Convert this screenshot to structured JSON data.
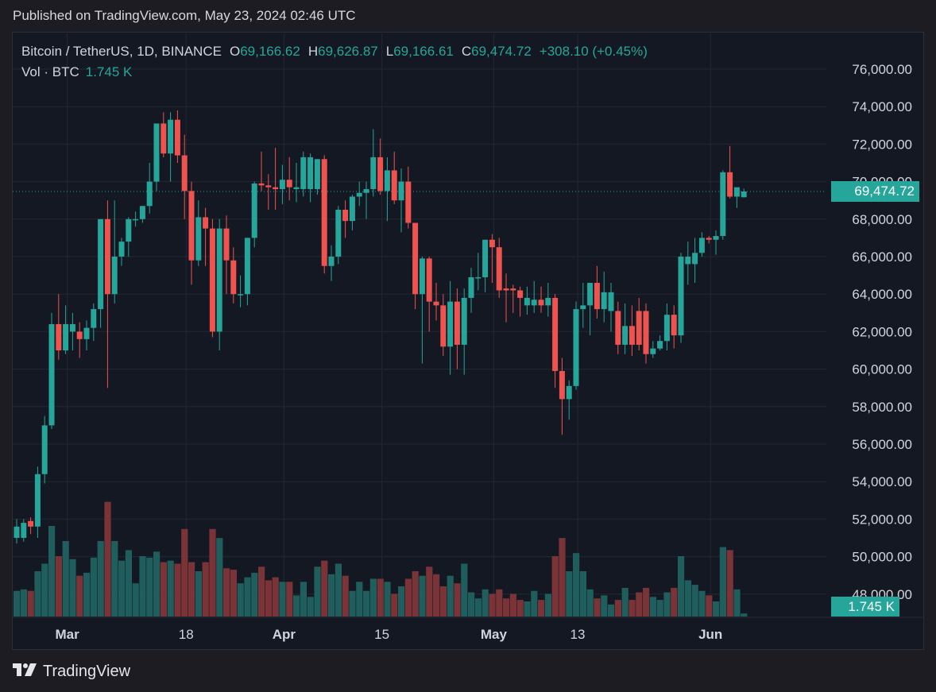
{
  "header": {
    "published": "Published on TradingView.com, May 23, 2024 02:46 UTC"
  },
  "legend": {
    "symbol": "Bitcoin / TetherUS, 1D, BINANCE",
    "o_label": "O",
    "o": "69,166.62",
    "h_label": "H",
    "h": "69,626.87",
    "l_label": "L",
    "l": "69,166.61",
    "c_label": "C",
    "c": "69,474.72",
    "change": "+308.10 (+0.45%)",
    "vol_label": "Vol · BTC",
    "vol_value": "1.745 K"
  },
  "price_tag": "69,474.72",
  "volume_tag": "1.745 K",
  "brand": "TradingView",
  "colors": {
    "up": "#26a69a",
    "down": "#ef5350",
    "up_vol": "#1f5e5c",
    "down_vol": "#7a3438",
    "tag": "#26a69a"
  },
  "chart_data": {
    "type": "candlestick",
    "symbol": "BTC/USDT",
    "interval": "1D",
    "y_range": [
      47000,
      76500
    ],
    "y_ticks": [
      "76,000.00",
      "74,000.00",
      "72,000.00",
      "70,000.00",
      "68,000.00",
      "66,000.00",
      "64,000.00",
      "62,000.00",
      "60,000.00",
      "58,000.00",
      "56,000.00",
      "54,000.00",
      "52,000.00",
      "50,000.00",
      "48,000.00"
    ],
    "y_tick_values": [
      76000,
      74000,
      72000,
      70000,
      68000,
      66000,
      64000,
      62000,
      60000,
      58000,
      56000,
      54000,
      52000,
      50000,
      48000
    ],
    "x_labels": [
      {
        "label": "Mar",
        "index": 7,
        "bold": true
      },
      {
        "label": "18",
        "index": 24,
        "bold": false
      },
      {
        "label": "Apr",
        "index": 38,
        "bold": true
      },
      {
        "label": "15",
        "index": 52,
        "bold": false
      },
      {
        "label": "May",
        "index": 68,
        "bold": true
      },
      {
        "label": "13",
        "index": 80,
        "bold": false
      },
      {
        "label": "Jun",
        "index": 99,
        "bold": true
      }
    ],
    "last_close": 69474.72,
    "candles": [
      [
        51600,
        52000,
        50700,
        51000,
        "up",
        0.17
      ],
      [
        51000,
        52000,
        50800,
        51800,
        "up",
        0.18
      ],
      [
        51900,
        52100,
        51200,
        51600,
        "down",
        0.17
      ],
      [
        51600,
        54800,
        51000,
        54400,
        "up",
        0.3
      ],
      [
        54400,
        57500,
        53900,
        57000,
        "up",
        0.35
      ],
      [
        57000,
        63000,
        56800,
        62400,
        "up",
        0.6
      ],
      [
        62400,
        64000,
        60500,
        61000,
        "down",
        0.4
      ],
      [
        61000,
        63400,
        60800,
        62400,
        "up",
        0.5
      ],
      [
        62400,
        63000,
        61000,
        62000,
        "up",
        0.38
      ],
      [
        62000,
        62500,
        60600,
        61600,
        "down",
        0.27
      ],
      [
        61600,
        62600,
        61000,
        62200,
        "up",
        0.29
      ],
      [
        62200,
        63500,
        61500,
        63200,
        "up",
        0.39
      ],
      [
        63200,
        68000,
        62200,
        68000,
        "up",
        0.5
      ],
      [
        68000,
        69000,
        59000,
        64000,
        "down",
        0.76
      ],
      [
        64000,
        69000,
        63500,
        66000,
        "up",
        0.5
      ],
      [
        66000,
        67000,
        65500,
        66800,
        "up",
        0.37
      ],
      [
        66800,
        68100,
        66000,
        68000,
        "up",
        0.44
      ],
      [
        68000,
        68400,
        67600,
        68000,
        "up",
        0.22
      ],
      [
        68000,
        68700,
        67800,
        68700,
        "up",
        0.4
      ],
      [
        68700,
        71000,
        68300,
        70000,
        "up",
        0.39
      ],
      [
        70000,
        73100,
        69500,
        73100,
        "up",
        0.43
      ],
      [
        73100,
        73700,
        71300,
        71500,
        "down",
        0.36
      ],
      [
        71500,
        73700,
        70000,
        73300,
        "up",
        0.37
      ],
      [
        73300,
        73800,
        71000,
        71400,
        "down",
        0.35
      ],
      [
        71400,
        72500,
        68000,
        69500,
        "down",
        0.58
      ],
      [
        69500,
        70000,
        64500,
        65800,
        "down",
        0.36
      ],
      [
        65800,
        69000,
        65500,
        68100,
        "up",
        0.3
      ],
      [
        68100,
        68600,
        65500,
        67500,
        "down",
        0.36
      ],
      [
        67500,
        68000,
        61700,
        62000,
        "down",
        0.58
      ],
      [
        62000,
        68000,
        61000,
        67500,
        "up",
        0.52
      ],
      [
        67500,
        68200,
        64000,
        65800,
        "down",
        0.32
      ],
      [
        65800,
        66500,
        63500,
        64000,
        "down",
        0.31
      ],
      [
        64000,
        65000,
        63300,
        64000,
        "up",
        0.22
      ],
      [
        64000,
        67000,
        63400,
        67000,
        "up",
        0.26
      ],
      [
        67000,
        70000,
        66500,
        69900,
        "up",
        0.29
      ],
      [
        69900,
        71600,
        69500,
        69800,
        "down",
        0.33
      ],
      [
        69800,
        70400,
        68500,
        69700,
        "down",
        0.24
      ],
      [
        69700,
        71800,
        68500,
        69600,
        "down",
        0.26
      ],
      [
        69600,
        70900,
        68800,
        70100,
        "up",
        0.23
      ],
      [
        70100,
        71300,
        69000,
        69700,
        "down",
        0.23
      ],
      [
        69700,
        71000,
        68900,
        69600,
        "up",
        0.14
      ],
      [
        69600,
        71600,
        69200,
        71300,
        "up",
        0.23
      ],
      [
        71300,
        71500,
        68900,
        69600,
        "up",
        0.13
      ],
      [
        69600,
        71200,
        69300,
        71200,
        "up",
        0.33
      ],
      [
        71200,
        71400,
        65100,
        65500,
        "down",
        0.37
      ],
      [
        65500,
        66600,
        64700,
        66000,
        "up",
        0.28
      ],
      [
        66000,
        68700,
        65600,
        68500,
        "up",
        0.35
      ],
      [
        68500,
        69000,
        67000,
        67900,
        "down",
        0.27
      ],
      [
        67900,
        69300,
        67400,
        69200,
        "up",
        0.17
      ],
      [
        69200,
        70000,
        68700,
        69400,
        "up",
        0.23
      ],
      [
        69400,
        70000,
        68000,
        69600,
        "up",
        0.17
      ],
      [
        69600,
        72800,
        69200,
        71300,
        "up",
        0.25
      ],
      [
        71300,
        72300,
        69300,
        69500,
        "down",
        0.25
      ],
      [
        69500,
        71300,
        67900,
        70600,
        "up",
        0.23
      ],
      [
        70600,
        71600,
        68800,
        69000,
        "down",
        0.15
      ],
      [
        69000,
        70700,
        67300,
        70000,
        "up",
        0.2
      ],
      [
        70000,
        70800,
        67500,
        67800,
        "down",
        0.25
      ],
      [
        67800,
        67600,
        63200,
        64000,
        "down",
        0.3
      ],
      [
        64000,
        66000,
        60300,
        65900,
        "up",
        0.27
      ],
      [
        65900,
        66000,
        62000,
        63600,
        "down",
        0.33
      ],
      [
        63600,
        64600,
        62600,
        63400,
        "down",
        0.28
      ],
      [
        63400,
        64000,
        60700,
        61200,
        "down",
        0.2
      ],
      [
        61200,
        64700,
        59700,
        63600,
        "up",
        0.27
      ],
      [
        63600,
        64300,
        60000,
        61300,
        "down",
        0.22
      ],
      [
        61300,
        64300,
        59700,
        63800,
        "up",
        0.35
      ],
      [
        63800,
        65400,
        63000,
        64900,
        "up",
        0.16
      ],
      [
        64900,
        66200,
        64200,
        64900,
        "up",
        0.12
      ],
      [
        64900,
        66900,
        64100,
        66900,
        "up",
        0.18
      ],
      [
        66900,
        67200,
        64600,
        66500,
        "down",
        0.15
      ],
      [
        66500,
        67000,
        63800,
        64200,
        "down",
        0.18
      ],
      [
        64200,
        65100,
        62500,
        64300,
        "down",
        0.12
      ],
      [
        64300,
        64500,
        63000,
        64200,
        "down",
        0.15
      ],
      [
        64200,
        64400,
        62800,
        63800,
        "down",
        0.11
      ],
      [
        63800,
        64400,
        62900,
        63400,
        "up",
        0.1
      ],
      [
        63400,
        64700,
        63000,
        63700,
        "up",
        0.17
      ],
      [
        63700,
        64400,
        63000,
        63400,
        "down",
        0.11
      ],
      [
        63400,
        64600,
        62800,
        63800,
        "up",
        0.15
      ],
      [
        63800,
        64000,
        59000,
        59900,
        "down",
        0.4
      ],
      [
        59900,
        60600,
        56500,
        58400,
        "down",
        0.52
      ],
      [
        58400,
        59400,
        57300,
        59100,
        "up",
        0.3
      ],
      [
        59100,
        63600,
        58900,
        63200,
        "up",
        0.42
      ],
      [
        63200,
        64600,
        62200,
        63400,
        "up",
        0.3
      ],
      [
        63400,
        64500,
        61800,
        64600,
        "up",
        0.18
      ],
      [
        64600,
        65500,
        62700,
        63200,
        "down",
        0.12
      ],
      [
        63200,
        65200,
        62500,
        64100,
        "up",
        0.14
      ],
      [
        64100,
        64600,
        62000,
        63100,
        "up",
        0.08
      ],
      [
        63100,
        63600,
        60800,
        61300,
        "down",
        0.11
      ],
      [
        61300,
        63500,
        60800,
        62300,
        "up",
        0.19
      ],
      [
        62300,
        63400,
        60700,
        61300,
        "down",
        0.11
      ],
      [
        61300,
        63800,
        61000,
        63100,
        "down",
        0.16
      ],
      [
        63100,
        63500,
        60300,
        60800,
        "down",
        0.19
      ],
      [
        60800,
        61500,
        60600,
        61100,
        "up",
        0.13
      ],
      [
        61100,
        61800,
        61000,
        61500,
        "up",
        0.11
      ],
      [
        61500,
        63500,
        61000,
        62900,
        "up",
        0.16
      ],
      [
        62900,
        63400,
        61100,
        61800,
        "down",
        0.19
      ]
    ],
    "candles_tail": [
      [
        61800,
        66200,
        61400,
        66000,
        "up",
        0.4
      ],
      [
        66000,
        66800,
        64500,
        65600,
        "up",
        0.24
      ],
      [
        65600,
        67000,
        64600,
        66200,
        "up",
        0.21
      ],
      [
        66200,
        67300,
        66000,
        67000,
        "up",
        0.17
      ],
      [
        67000,
        67100,
        66700,
        66900,
        "down",
        0.14
      ],
      [
        66900,
        67400,
        66100,
        67100,
        "up",
        0.1
      ],
      [
        67100,
        70600,
        66900,
        70500,
        "up",
        0.46
      ],
      [
        70500,
        71900,
        69100,
        69200,
        "down",
        0.44
      ],
      [
        69200,
        69500,
        68600,
        69700,
        "up",
        0.18
      ],
      [
        69166.62,
        69626.87,
        69166.61,
        69474.72,
        "up",
        0.02
      ]
    ]
  }
}
